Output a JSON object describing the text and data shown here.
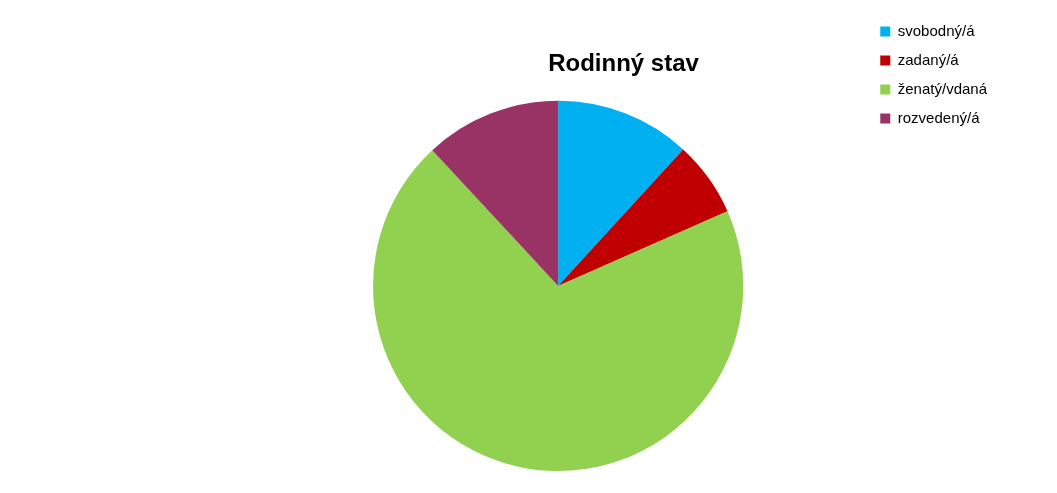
{
  "chart_data": {
    "type": "pie",
    "title": "Rodinný stav",
    "categories": [
      "svobodný/á",
      "zadaný/á",
      "ženatý/vdaná",
      "rozvedený/á"
    ],
    "values": [
      11.8,
      6.6,
      69.7,
      11.9
    ],
    "colors": [
      "#00b0f0",
      "#c00000",
      "#92d050",
      "#993366"
    ],
    "legend": "right"
  }
}
